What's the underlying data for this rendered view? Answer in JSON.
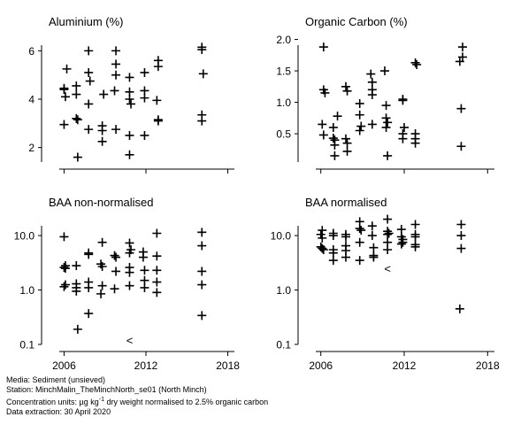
{
  "chart_data": [
    {
      "type": "scatter",
      "title": "Aluminium (%)",
      "scale": "linear",
      "xlim": [
        2005,
        2019
      ],
      "ylim": [
        1.4,
        6.6
      ],
      "xticks": [
        2006,
        2012,
        2018
      ],
      "xtick_labels": [
        "",
        "",
        ""
      ],
      "yticks": [
        2,
        4,
        6
      ],
      "ytick_labels": [
        "2",
        "4",
        "6"
      ],
      "marker": "+",
      "points": [
        {
          "x": 2006.0,
          "y": 4.45
        },
        {
          "x": 2006.0,
          "y": 4.4
        },
        {
          "x": 2006.1,
          "y": 4.1
        },
        {
          "x": 2006.2,
          "y": 5.25
        },
        {
          "x": 2006.0,
          "y": 2.95
        },
        {
          "x": 2006.9,
          "y": 4.55
        },
        {
          "x": 2006.9,
          "y": 4.2
        },
        {
          "x": 2006.9,
          "y": 3.2
        },
        {
          "x": 2007.0,
          "y": 3.15
        },
        {
          "x": 2007.0,
          "y": 1.6
        },
        {
          "x": 2007.8,
          "y": 6.0
        },
        {
          "x": 2007.8,
          "y": 5.1
        },
        {
          "x": 2007.9,
          "y": 4.75
        },
        {
          "x": 2007.8,
          "y": 3.8
        },
        {
          "x": 2007.8,
          "y": 2.75
        },
        {
          "x": 2008.9,
          "y": 4.2
        },
        {
          "x": 2008.8,
          "y": 2.9
        },
        {
          "x": 2008.8,
          "y": 2.7
        },
        {
          "x": 2008.8,
          "y": 2.25
        },
        {
          "x": 2009.8,
          "y": 6.0
        },
        {
          "x": 2009.8,
          "y": 5.45
        },
        {
          "x": 2009.8,
          "y": 5.0
        },
        {
          "x": 2009.7,
          "y": 4.35
        },
        {
          "x": 2009.8,
          "y": 2.75
        },
        {
          "x": 2010.8,
          "y": 4.9
        },
        {
          "x": 2010.8,
          "y": 4.3
        },
        {
          "x": 2010.8,
          "y": 4.0
        },
        {
          "x": 2010.9,
          "y": 3.8
        },
        {
          "x": 2010.8,
          "y": 2.5
        },
        {
          "x": 2010.8,
          "y": 1.7
        },
        {
          "x": 2011.9,
          "y": 5.1
        },
        {
          "x": 2011.9,
          "y": 4.35
        },
        {
          "x": 2011.9,
          "y": 4.05
        },
        {
          "x": 2011.9,
          "y": 2.5
        },
        {
          "x": 2012.9,
          "y": 5.6
        },
        {
          "x": 2012.9,
          "y": 5.35
        },
        {
          "x": 2012.8,
          "y": 3.95
        },
        {
          "x": 2012.9,
          "y": 3.15
        },
        {
          "x": 2012.9,
          "y": 3.1
        },
        {
          "x": 2016.1,
          "y": 6.15
        },
        {
          "x": 2016.1,
          "y": 6.05
        },
        {
          "x": 2016.2,
          "y": 5.05
        },
        {
          "x": 2016.1,
          "y": 3.35
        },
        {
          "x": 2016.1,
          "y": 3.1
        }
      ],
      "less_than": []
    },
    {
      "type": "scatter",
      "title": "Organic Carbon (%)",
      "scale": "linear",
      "xlim": [
        2005,
        2019
      ],
      "ylim": [
        0.05,
        2.05
      ],
      "xticks": [
        2006,
        2012,
        2018
      ],
      "xtick_labels": [
        "",
        "",
        ""
      ],
      "yticks": [
        0.5,
        1.0,
        1.5,
        2.0
      ],
      "ytick_labels": [
        "0.5",
        "1.0",
        "1.5",
        "2.0"
      ],
      "marker": "+",
      "points": [
        {
          "x": 2006.2,
          "y": 1.88
        },
        {
          "x": 2006.2,
          "y": 1.2
        },
        {
          "x": 2006.3,
          "y": 1.15
        },
        {
          "x": 2006.1,
          "y": 0.65
        },
        {
          "x": 2006.2,
          "y": 0.48
        },
        {
          "x": 2006.9,
          "y": 0.6
        },
        {
          "x": 2006.9,
          "y": 0.43
        },
        {
          "x": 2007.0,
          "y": 0.4
        },
        {
          "x": 2007.2,
          "y": 0.78
        },
        {
          "x": 2007.0,
          "y": 0.32
        },
        {
          "x": 2007.0,
          "y": 0.15
        },
        {
          "x": 2007.8,
          "y": 1.25
        },
        {
          "x": 2007.9,
          "y": 1.18
        },
        {
          "x": 2007.8,
          "y": 0.42
        },
        {
          "x": 2007.9,
          "y": 0.35
        },
        {
          "x": 2007.9,
          "y": 0.22
        },
        {
          "x": 2008.8,
          "y": 0.98
        },
        {
          "x": 2008.8,
          "y": 0.8
        },
        {
          "x": 2008.9,
          "y": 0.62
        },
        {
          "x": 2008.8,
          "y": 0.55
        },
        {
          "x": 2009.6,
          "y": 1.45
        },
        {
          "x": 2009.7,
          "y": 1.32
        },
        {
          "x": 2009.7,
          "y": 1.2
        },
        {
          "x": 2009.7,
          "y": 1.12
        },
        {
          "x": 2009.7,
          "y": 0.65
        },
        {
          "x": 2010.6,
          "y": 1.5
        },
        {
          "x": 2010.7,
          "y": 0.95
        },
        {
          "x": 2010.7,
          "y": 0.75
        },
        {
          "x": 2010.8,
          "y": 0.68
        },
        {
          "x": 2010.7,
          "y": 0.6
        },
        {
          "x": 2010.8,
          "y": 0.15
        },
        {
          "x": 2011.9,
          "y": 1.05
        },
        {
          "x": 2011.9,
          "y": 1.03
        },
        {
          "x": 2012.0,
          "y": 0.6
        },
        {
          "x": 2011.9,
          "y": 0.5
        },
        {
          "x": 2011.9,
          "y": 0.42
        },
        {
          "x": 2012.8,
          "y": 1.63
        },
        {
          "x": 2012.9,
          "y": 1.6
        },
        {
          "x": 2012.8,
          "y": 0.5
        },
        {
          "x": 2012.8,
          "y": 0.42
        },
        {
          "x": 2012.8,
          "y": 0.35
        },
        {
          "x": 2016.2,
          "y": 1.88
        },
        {
          "x": 2016.2,
          "y": 1.72
        },
        {
          "x": 2016.0,
          "y": 1.65
        },
        {
          "x": 2016.1,
          "y": 0.9
        },
        {
          "x": 2016.1,
          "y": 0.3
        }
      ],
      "less_than": []
    },
    {
      "type": "scatter",
      "title": "BAA non-normalised",
      "scale": "log",
      "xlim": [
        2005,
        2019
      ],
      "ylim": [
        0.1,
        22
      ],
      "xticks": [
        2006,
        2012,
        2018
      ],
      "xtick_labels": [
        "2006",
        "2012",
        "2018"
      ],
      "yticks": [
        0.1,
        1.0,
        10.0
      ],
      "ytick_labels": [
        "0.1",
        "1.0",
        "10.0"
      ],
      "marker": "+",
      "points": [
        {
          "x": 2006.0,
          "y": 9.5
        },
        {
          "x": 2006.1,
          "y": 2.8
        },
        {
          "x": 2006.0,
          "y": 2.6
        },
        {
          "x": 2006.1,
          "y": 2.5
        },
        {
          "x": 2006.1,
          "y": 1.25
        },
        {
          "x": 2006.0,
          "y": 1.15
        },
        {
          "x": 2006.9,
          "y": 2.8
        },
        {
          "x": 2006.9,
          "y": 1.3
        },
        {
          "x": 2006.9,
          "y": 1.1
        },
        {
          "x": 2006.9,
          "y": 0.95
        },
        {
          "x": 2007.0,
          "y": 0.19
        },
        {
          "x": 2007.8,
          "y": 4.8
        },
        {
          "x": 2007.8,
          "y": 4.5
        },
        {
          "x": 2007.8,
          "y": 1.4
        },
        {
          "x": 2007.8,
          "y": 1.1
        },
        {
          "x": 2007.8,
          "y": 0.37
        },
        {
          "x": 2008.8,
          "y": 7.5
        },
        {
          "x": 2008.7,
          "y": 3.0
        },
        {
          "x": 2008.8,
          "y": 2.7
        },
        {
          "x": 2008.8,
          "y": 1.2
        },
        {
          "x": 2008.7,
          "y": 0.85
        },
        {
          "x": 2009.7,
          "y": 4.3
        },
        {
          "x": 2009.8,
          "y": 4.0
        },
        {
          "x": 2009.8,
          "y": 2.2
        },
        {
          "x": 2009.7,
          "y": 1.05
        },
        {
          "x": 2010.8,
          "y": 7.3
        },
        {
          "x": 2010.9,
          "y": 5.5
        },
        {
          "x": 2010.8,
          "y": 4.8
        },
        {
          "x": 2010.8,
          "y": 2.6
        },
        {
          "x": 2010.8,
          "y": 2.1
        },
        {
          "x": 2010.8,
          "y": 1.2
        },
        {
          "x": 2011.8,
          "y": 5.0
        },
        {
          "x": 2011.8,
          "y": 4.0
        },
        {
          "x": 2011.9,
          "y": 2.3
        },
        {
          "x": 2011.9,
          "y": 1.5
        },
        {
          "x": 2011.9,
          "y": 1.1
        },
        {
          "x": 2012.8,
          "y": 11.0
        },
        {
          "x": 2012.8,
          "y": 4.2
        },
        {
          "x": 2012.8,
          "y": 2.3
        },
        {
          "x": 2012.8,
          "y": 1.4
        },
        {
          "x": 2012.8,
          "y": 0.9
        },
        {
          "x": 2016.1,
          "y": 11.5
        },
        {
          "x": 2016.1,
          "y": 6.5
        },
        {
          "x": 2016.1,
          "y": 2.2
        },
        {
          "x": 2016.1,
          "y": 1.25
        },
        {
          "x": 2016.1,
          "y": 0.34
        }
      ],
      "less_than": [
        {
          "x": 2010.8,
          "y": 0.12
        }
      ]
    },
    {
      "type": "scatter",
      "title": "BAA normalised",
      "scale": "log",
      "xlim": [
        2005,
        2019
      ],
      "ylim": [
        0.1,
        22
      ],
      "xticks": [
        2006,
        2012,
        2018
      ],
      "xtick_labels": [
        "2006",
        "2012",
        "2018"
      ],
      "yticks": [
        0.1,
        1.0,
        10.0
      ],
      "ytick_labels": [
        "0.1",
        "1.0",
        "10.0"
      ],
      "marker": "+",
      "points": [
        {
          "x": 2006.1,
          "y": 12.5
        },
        {
          "x": 2006.0,
          "y": 10.5
        },
        {
          "x": 2006.1,
          "y": 9.0
        },
        {
          "x": 2006.0,
          "y": 6.2
        },
        {
          "x": 2006.1,
          "y": 5.8
        },
        {
          "x": 2006.2,
          "y": 5.5
        },
        {
          "x": 2006.9,
          "y": 11.0
        },
        {
          "x": 2006.9,
          "y": 10.0
        },
        {
          "x": 2006.9,
          "y": 5.5
        },
        {
          "x": 2006.9,
          "y": 4.8
        },
        {
          "x": 2006.9,
          "y": 3.5
        },
        {
          "x": 2007.8,
          "y": 10.5
        },
        {
          "x": 2007.8,
          "y": 9.5
        },
        {
          "x": 2007.8,
          "y": 6.5
        },
        {
          "x": 2007.8,
          "y": 5.3
        },
        {
          "x": 2007.8,
          "y": 4.0
        },
        {
          "x": 2008.8,
          "y": 18.0
        },
        {
          "x": 2008.8,
          "y": 13.5
        },
        {
          "x": 2008.9,
          "y": 12.5
        },
        {
          "x": 2008.8,
          "y": 7.5
        },
        {
          "x": 2008.8,
          "y": 3.5
        },
        {
          "x": 2009.7,
          "y": 15.0
        },
        {
          "x": 2009.7,
          "y": 10.0
        },
        {
          "x": 2009.8,
          "y": 6.0
        },
        {
          "x": 2009.8,
          "y": 4.3
        },
        {
          "x": 2009.8,
          "y": 4.0
        },
        {
          "x": 2010.8,
          "y": 20.0
        },
        {
          "x": 2010.8,
          "y": 12.0
        },
        {
          "x": 2010.9,
          "y": 11.0
        },
        {
          "x": 2010.8,
          "y": 10.5
        },
        {
          "x": 2010.8,
          "y": 7.5
        },
        {
          "x": 2010.8,
          "y": 5.5
        },
        {
          "x": 2011.8,
          "y": 13.0
        },
        {
          "x": 2011.8,
          "y": 9.5
        },
        {
          "x": 2011.9,
          "y": 8.5
        },
        {
          "x": 2011.9,
          "y": 7.5
        },
        {
          "x": 2011.8,
          "y": 7.0
        },
        {
          "x": 2012.8,
          "y": 16.0
        },
        {
          "x": 2012.8,
          "y": 10.5
        },
        {
          "x": 2012.8,
          "y": 9.5
        },
        {
          "x": 2012.8,
          "y": 6.8
        },
        {
          "x": 2012.8,
          "y": 6.2
        },
        {
          "x": 2016.1,
          "y": 16.0
        },
        {
          "x": 2016.1,
          "y": 10.0
        },
        {
          "x": 2016.1,
          "y": 5.8
        },
        {
          "x": 2016.0,
          "y": 0.45
        }
      ],
      "less_than": [
        {
          "x": 2010.8,
          "y": 2.5
        }
      ]
    }
  ],
  "less_than_symbol": "<",
  "footer": {
    "media": "Media: Sediment (unsieved)",
    "station": "Station: MinchMalin_TheMinchNorth_se01 (North Minch)",
    "units_prefix": "Concentration units:  µg kg",
    "units_sup": "-1",
    "units_suffix": " dry weight normalised to 2.5% organic carbon",
    "extraction": "Data extraction: 30 April 2020"
  },
  "colors": {
    "foreground": "#000000",
    "background": "#ffffff"
  }
}
